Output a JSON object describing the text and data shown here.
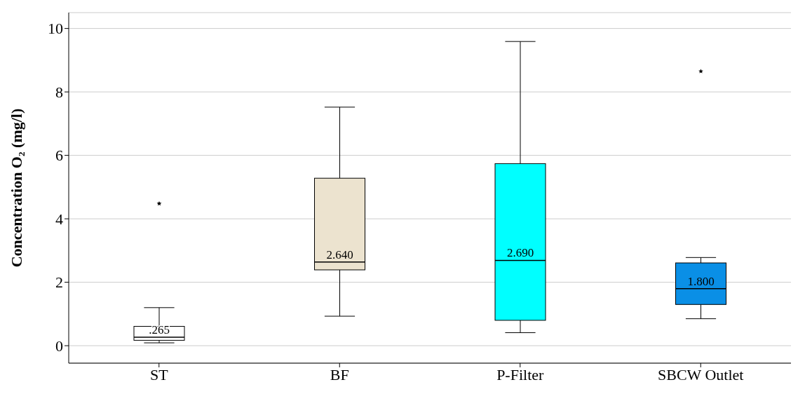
{
  "chart_data": {
    "type": "box",
    "ylabel": "Concentration O₂ (mg/l)",
    "categories": [
      "ST",
      "BF",
      "P-Filter",
      "SBCW Outlet"
    ],
    "boxes": [
      {
        "low": 0.09,
        "q1": 0.17,
        "median": 0.265,
        "q3": 0.61,
        "high": 1.2,
        "outliers": [
          4.48
        ]
      },
      {
        "low": 0.93,
        "q1": 2.39,
        "median": 2.64,
        "q3": 5.28,
        "high": 7.52
      },
      {
        "low": 0.41,
        "q1": 0.8,
        "median": 2.69,
        "q3": 5.74,
        "high": 9.59
      },
      {
        "low": 0.85,
        "q1": 1.3,
        "median": 1.8,
        "q3": 2.61,
        "high": 2.78,
        "outliers": [
          8.65
        ]
      }
    ],
    "colors": [
      "#ffffff",
      "#ece3cf",
      "#00ffff",
      "#0a8fe6"
    ],
    "value_labels": [
      ".265",
      "2.640",
      "2.690",
      "1.800"
    ],
    "ylim": [
      -0.55,
      10.5
    ],
    "yticks": [
      0,
      2,
      4,
      6,
      8,
      10
    ],
    "grid": "y",
    "marker": "star"
  }
}
